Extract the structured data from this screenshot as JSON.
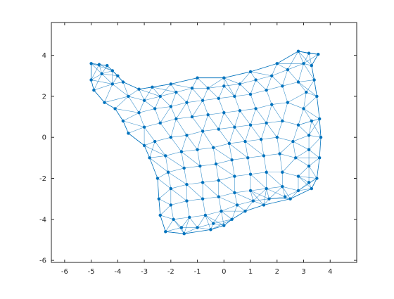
{
  "chart_data": {
    "type": "scatter",
    "subtype": "triangulated-mesh",
    "title": "",
    "xlabel": "",
    "ylabel": "",
    "xlim": [
      -6.5,
      5
    ],
    "ylim": [
      -6.1,
      5.6
    ],
    "xticks": [
      -6,
      -5,
      -4,
      -3,
      -2,
      -1,
      0,
      1,
      2,
      3,
      4
    ],
    "yticks": [
      -6,
      -4,
      -2,
      0,
      2,
      4
    ],
    "grid": false,
    "legend": "none",
    "series_color": "#0072BD",
    "marker": "dot",
    "boundary": [
      [
        -5.0,
        3.6
      ],
      [
        -4.7,
        3.55
      ],
      [
        -4.4,
        3.5
      ],
      [
        -4.2,
        3.25
      ],
      [
        -4.0,
        3.0
      ],
      [
        -3.8,
        2.7
      ],
      [
        -3.2,
        2.35
      ],
      [
        -2.7,
        2.45
      ],
      [
        -2.0,
        2.6
      ],
      [
        -1.0,
        2.9
      ],
      [
        0.0,
        2.9
      ],
      [
        1.0,
        3.2
      ],
      [
        2.0,
        3.6
      ],
      [
        2.8,
        4.2
      ],
      [
        3.2,
        4.1
      ],
      [
        3.55,
        4.05
      ],
      [
        3.3,
        3.5
      ],
      [
        3.4,
        2.8
      ],
      [
        3.5,
        2.0
      ],
      [
        3.6,
        0.9
      ],
      [
        3.65,
        0.0
      ],
      [
        3.6,
        -1.0
      ],
      [
        3.5,
        -2.0
      ],
      [
        3.3,
        -2.5
      ],
      [
        2.5,
        -3.0
      ],
      [
        1.5,
        -3.3
      ],
      [
        0.8,
        -3.6
      ],
      [
        0.3,
        -4.0
      ],
      [
        0.0,
        -4.3
      ],
      [
        -0.5,
        -4.5
      ],
      [
        -1.5,
        -4.7
      ],
      [
        -2.2,
        -4.6
      ],
      [
        -2.4,
        -3.8
      ],
      [
        -2.45,
        -3.0
      ],
      [
        -2.5,
        -2.0
      ],
      [
        -2.8,
        -1.0
      ],
      [
        -3.0,
        -0.4
      ],
      [
        -3.6,
        0.2
      ],
      [
        -3.8,
        0.8
      ],
      [
        -4.1,
        1.4
      ],
      [
        -4.5,
        1.7
      ],
      [
        -4.9,
        2.3
      ],
      [
        -5.0,
        2.8
      ]
    ],
    "interior_points": [
      [
        -4.6,
        3.1
      ],
      [
        -4.2,
        2.6
      ],
      [
        -3.6,
        2.0
      ],
      [
        -3.0,
        1.8
      ],
      [
        -2.4,
        2.0
      ],
      [
        -1.8,
        2.2
      ],
      [
        -1.2,
        2.4
      ],
      [
        -0.6,
        2.4
      ],
      [
        0.0,
        2.5
      ],
      [
        0.6,
        2.6
      ],
      [
        1.2,
        2.8
      ],
      [
        1.8,
        3.0
      ],
      [
        2.4,
        3.3
      ],
      [
        3.0,
        3.6
      ],
      [
        -3.2,
        1.2
      ],
      [
        -2.6,
        1.4
      ],
      [
        -2.0,
        1.5
      ],
      [
        -1.4,
        1.7
      ],
      [
        -0.8,
        1.8
      ],
      [
        -0.2,
        1.9
      ],
      [
        0.4,
        2.0
      ],
      [
        1.0,
        2.1
      ],
      [
        1.6,
        2.3
      ],
      [
        2.2,
        2.5
      ],
      [
        2.8,
        2.7
      ],
      [
        3.1,
        2.2
      ],
      [
        -3.0,
        0.5
      ],
      [
        -2.4,
        0.7
      ],
      [
        -1.8,
        0.9
      ],
      [
        -1.2,
        1.0
      ],
      [
        -0.6,
        1.1
      ],
      [
        0.0,
        1.2
      ],
      [
        0.6,
        1.3
      ],
      [
        1.2,
        1.4
      ],
      [
        1.8,
        1.6
      ],
      [
        2.4,
        1.7
      ],
      [
        3.0,
        1.4
      ],
      [
        3.3,
        0.8
      ],
      [
        -2.6,
        -0.2
      ],
      [
        -2.0,
        0.0
      ],
      [
        -1.4,
        0.1
      ],
      [
        -0.8,
        0.3
      ],
      [
        -0.2,
        0.4
      ],
      [
        0.4,
        0.5
      ],
      [
        1.0,
        0.6
      ],
      [
        1.6,
        0.7
      ],
      [
        2.2,
        0.8
      ],
      [
        2.8,
        0.6
      ],
      [
        3.2,
        0.1
      ],
      [
        -2.2,
        -0.9
      ],
      [
        -1.6,
        -0.7
      ],
      [
        -1.0,
        -0.6
      ],
      [
        -0.4,
        -0.5
      ],
      [
        0.2,
        -0.3
      ],
      [
        0.8,
        -0.2
      ],
      [
        1.4,
        -0.1
      ],
      [
        2.0,
        0.0
      ],
      [
        2.6,
        -0.2
      ],
      [
        3.2,
        -0.6
      ],
      [
        -2.1,
        -1.7
      ],
      [
        -1.5,
        -1.5
      ],
      [
        -0.9,
        -1.4
      ],
      [
        -0.3,
        -1.3
      ],
      [
        0.3,
        -1.1
      ],
      [
        0.9,
        -1.0
      ],
      [
        1.5,
        -0.9
      ],
      [
        2.1,
        -0.8
      ],
      [
        2.7,
        -1.0
      ],
      [
        3.2,
        -1.4
      ],
      [
        -2.0,
        -2.5
      ],
      [
        -1.4,
        -2.3
      ],
      [
        -0.8,
        -2.2
      ],
      [
        -0.2,
        -2.1
      ],
      [
        0.4,
        -1.9
      ],
      [
        1.0,
        -1.8
      ],
      [
        1.6,
        -1.7
      ],
      [
        2.2,
        -1.7
      ],
      [
        2.8,
        -1.9
      ],
      [
        3.2,
        -2.2
      ],
      [
        -2.0,
        -3.3
      ],
      [
        -1.4,
        -3.1
      ],
      [
        -0.8,
        -3.0
      ],
      [
        -0.2,
        -2.9
      ],
      [
        0.4,
        -2.7
      ],
      [
        1.0,
        -2.6
      ],
      [
        1.6,
        -2.5
      ],
      [
        2.2,
        -2.4
      ],
      [
        2.8,
        -2.6
      ],
      [
        -1.9,
        -4.0
      ],
      [
        -1.3,
        -3.9
      ],
      [
        -0.7,
        -3.8
      ],
      [
        -0.1,
        -3.6
      ],
      [
        0.5,
        -3.3
      ],
      [
        1.1,
        -3.1
      ],
      [
        1.7,
        -3.0
      ],
      [
        2.3,
        -2.9
      ],
      [
        -1.6,
        -4.4
      ],
      [
        -1.0,
        -4.4
      ],
      [
        -0.4,
        -4.2
      ]
    ]
  }
}
